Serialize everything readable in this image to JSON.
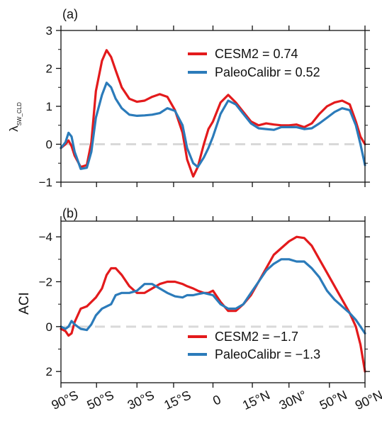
{
  "figure": {
    "x_ticklabels": [
      "90°S",
      "50°S",
      "30°S",
      "15°S",
      "0",
      "15°N",
      "30N°",
      "50°N",
      "90°N"
    ],
    "x_tick_sinlat": [
      -1,
      -0.766,
      -0.5,
      -0.259,
      0,
      0.259,
      0.5,
      0.766,
      1
    ],
    "colors": {
      "cesm2": "#e31a1c",
      "paleo": "#2b7bba",
      "zero_line": "#d9d9d9",
      "axes": "#111111"
    }
  },
  "chart_data": [
    {
      "type": "line",
      "panel_label": "(a)",
      "ylabel_main": "λ",
      "ylabel_sub": "SW_CLD",
      "xaxis": "sine of latitude",
      "ylim": [
        -1,
        3
      ],
      "yticks": [
        -1,
        0,
        1,
        2,
        3
      ],
      "ytick_labels": [
        "−1",
        "0",
        "1",
        "2",
        "3"
      ],
      "reference_line": 0,
      "legend_position": "top-right",
      "x": [
        -1,
        -0.97,
        -0.95,
        -0.93,
        -0.91,
        -0.87,
        -0.83,
        -0.8,
        -0.77,
        -0.73,
        -0.7,
        -0.67,
        -0.64,
        -0.6,
        -0.55,
        -0.5,
        -0.45,
        -0.4,
        -0.35,
        -0.3,
        -0.25,
        -0.2,
        -0.17,
        -0.13,
        -0.1,
        -0.06,
        -0.03,
        0,
        0.05,
        0.1,
        0.15,
        0.2,
        0.25,
        0.3,
        0.35,
        0.4,
        0.45,
        0.5,
        0.55,
        0.6,
        0.65,
        0.7,
        0.75,
        0.8,
        0.85,
        0.9,
        0.94,
        0.97,
        1.0
      ],
      "series": [
        {
          "name": "CESM2 = 0.74",
          "color": "#e31a1c",
          "values": [
            -0.1,
            0.0,
            0.1,
            -0.05,
            -0.3,
            -0.6,
            -0.55,
            0.05,
            1.4,
            2.2,
            2.48,
            2.3,
            1.95,
            1.5,
            1.2,
            1.12,
            1.15,
            1.25,
            1.32,
            1.25,
            0.9,
            0.3,
            -0.4,
            -0.85,
            -0.6,
            0.0,
            0.4,
            0.6,
            1.1,
            1.3,
            1.1,
            0.85,
            0.6,
            0.5,
            0.55,
            0.52,
            0.5,
            0.5,
            0.52,
            0.45,
            0.55,
            0.8,
            1.0,
            1.1,
            1.15,
            1.05,
            0.6,
            0.2,
            0.0
          ]
        },
        {
          "name": "PaleoCalibr = 0.52",
          "color": "#2b7bba",
          "values": [
            -0.1,
            0.05,
            0.3,
            0.2,
            -0.2,
            -0.65,
            -0.62,
            -0.2,
            0.7,
            1.3,
            1.62,
            1.5,
            1.2,
            0.95,
            0.78,
            0.75,
            0.76,
            0.78,
            0.82,
            0.95,
            0.88,
            0.5,
            -0.1,
            -0.5,
            -0.6,
            -0.35,
            -0.1,
            0.2,
            0.8,
            1.15,
            1.05,
            0.8,
            0.55,
            0.42,
            0.4,
            0.38,
            0.45,
            0.45,
            0.45,
            0.4,
            0.42,
            0.55,
            0.7,
            0.85,
            0.95,
            0.9,
            0.5,
            0.0,
            -0.55
          ]
        }
      ]
    },
    {
      "type": "line",
      "panel_label": "(b)",
      "ylabel_main": "ACI",
      "xaxis": "sine of latitude",
      "ylim": [
        2.5,
        -4.7
      ],
      "y_inverted": true,
      "yticks": [
        2,
        0,
        -2,
        -4
      ],
      "ytick_labels": [
        "2",
        "0",
        "−2",
        "−4"
      ],
      "reference_line": 0,
      "legend_position": "bottom-right",
      "x": [
        -1,
        -0.97,
        -0.95,
        -0.93,
        -0.91,
        -0.87,
        -0.83,
        -0.8,
        -0.77,
        -0.73,
        -0.7,
        -0.67,
        -0.64,
        -0.6,
        -0.55,
        -0.5,
        -0.45,
        -0.4,
        -0.35,
        -0.3,
        -0.25,
        -0.2,
        -0.17,
        -0.13,
        -0.1,
        -0.06,
        -0.03,
        0,
        0.05,
        0.1,
        0.15,
        0.2,
        0.25,
        0.3,
        0.35,
        0.4,
        0.45,
        0.5,
        0.55,
        0.6,
        0.65,
        0.7,
        0.75,
        0.8,
        0.85,
        0.9,
        0.94,
        0.97,
        1.0
      ],
      "series": [
        {
          "name": "CESM2 = −1.7",
          "color": "#e31a1c",
          "values": [
            0.1,
            0.2,
            0.4,
            0.3,
            -0.2,
            -0.8,
            -0.9,
            -1.1,
            -1.3,
            -1.7,
            -2.3,
            -2.6,
            -2.6,
            -2.3,
            -1.8,
            -1.5,
            -1.5,
            -1.7,
            -1.9,
            -2.0,
            -2.0,
            -1.9,
            -1.8,
            -1.7,
            -1.6,
            -1.5,
            -1.5,
            -1.6,
            -1.1,
            -0.7,
            -0.7,
            -1.0,
            -1.4,
            -2.0,
            -2.6,
            -3.2,
            -3.5,
            -3.8,
            -4.0,
            -3.95,
            -3.6,
            -3.0,
            -2.4,
            -1.8,
            -1.2,
            -0.6,
            0.0,
            0.8,
            2.0
          ]
        },
        {
          "name": "PaleoCalibr = −1.3",
          "color": "#2b7bba",
          "values": [
            0.0,
            0.1,
            0.0,
            -0.25,
            -0.1,
            0.1,
            0.15,
            -0.1,
            -0.5,
            -0.8,
            -0.9,
            -1.0,
            -1.4,
            -1.5,
            -1.5,
            -1.6,
            -1.9,
            -1.9,
            -1.7,
            -1.5,
            -1.35,
            -1.3,
            -1.4,
            -1.4,
            -1.45,
            -1.5,
            -1.45,
            -1.4,
            -1.0,
            -0.8,
            -0.8,
            -1.0,
            -1.5,
            -2.0,
            -2.5,
            -2.8,
            -3.0,
            -3.0,
            -2.9,
            -2.9,
            -2.6,
            -2.2,
            -1.6,
            -1.2,
            -0.9,
            -0.6,
            -0.3,
            0.0,
            0.3
          ]
        }
      ]
    }
  ]
}
